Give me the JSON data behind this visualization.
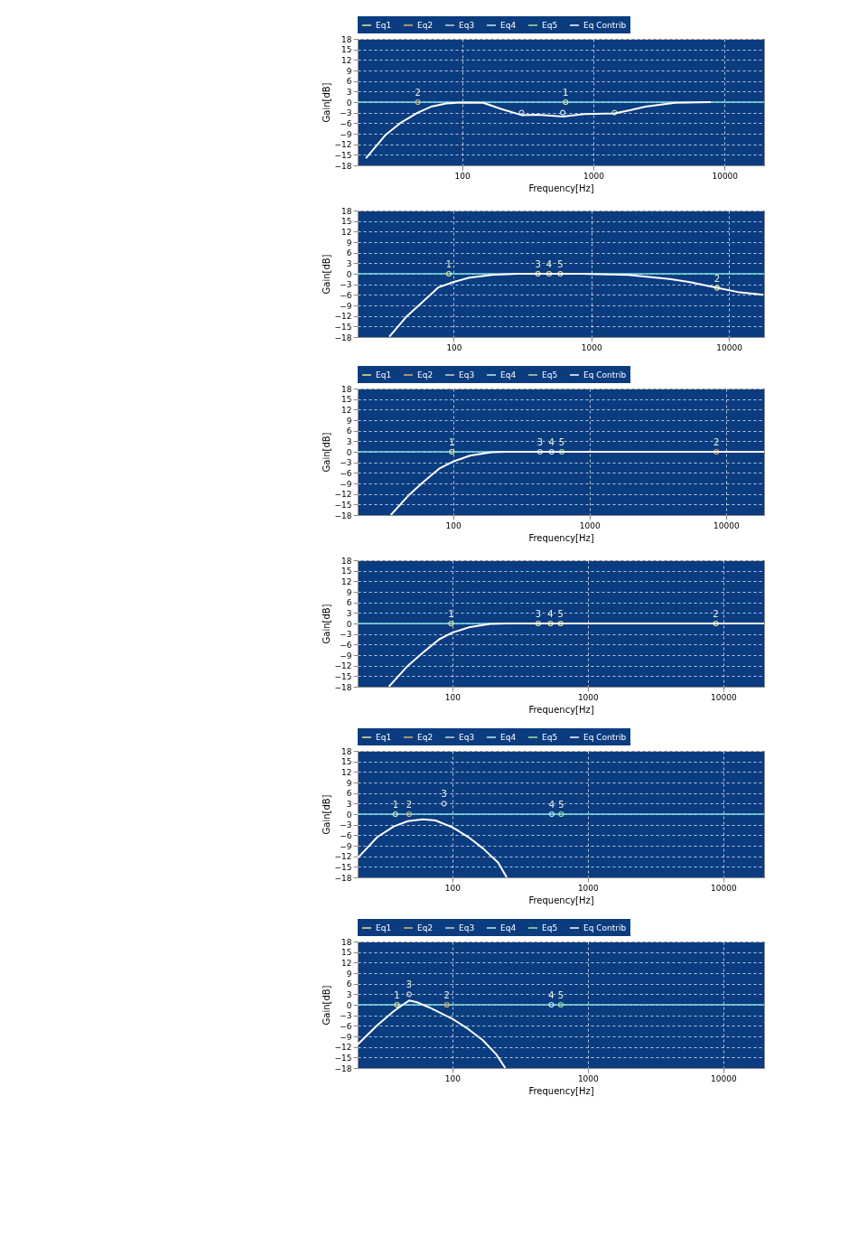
{
  "chart_data": [
    {
      "type": "line",
      "xlabel": "Frequency[Hz]",
      "ylabel": "Gain[dB]",
      "log": "x",
      "grid": true,
      "legend": "top",
      "xlim": [
        16,
        20000
      ],
      "xticks": [
        100,
        1000,
        10000
      ],
      "ylim": [
        -18,
        18
      ],
      "yticks": [
        -18,
        -15,
        -12,
        -9,
        -6,
        -3,
        0,
        3,
        6,
        9,
        12,
        15,
        18
      ],
      "ref_lines": [
        {
          "axis": "y",
          "value": 0,
          "color": "#80e0e0"
        }
      ],
      "series": [
        {
          "name": "Eq1",
          "type": "scatter",
          "marker": "circle",
          "color": "#e8e89a",
          "x": [
            615
          ],
          "values": [
            0
          ]
        },
        {
          "name": "Eq2",
          "type": "scatter",
          "marker": "circle",
          "color": "#e0b070",
          "x": [
            46
          ],
          "values": [
            0
          ]
        },
        {
          "name": "Eq3",
          "type": "scatter",
          "marker": "circle",
          "color": "#d0d0d0",
          "x": [
            284
          ],
          "values": [
            -3
          ]
        },
        {
          "name": "Eq4",
          "type": "scatter",
          "marker": "circle",
          "color": "#c8e8f0",
          "x": [
            585
          ],
          "values": [
            -3
          ]
        },
        {
          "name": "Eq5",
          "type": "scatter",
          "marker": "circle",
          "color": "#a8e0a0",
          "x": [
            1450
          ],
          "values": [
            -3
          ]
        },
        {
          "name": "Eq Contrib",
          "color": "#ffffff",
          "x": [
            18.5,
            26,
            34,
            46,
            58,
            76,
            100,
            145,
            200,
            284,
            381,
            585,
            851,
            1450,
            1900,
            2500,
            4200,
            7850
          ],
          "values": [
            -16,
            -9.4,
            -5.9,
            -3,
            -1.3,
            -0.4,
            -0.1,
            -0.2,
            -2,
            -3.7,
            -3.6,
            -4.1,
            -3.4,
            -3.2,
            -2.3,
            -1.3,
            -0.2,
            0
          ]
        }
      ],
      "annotations": [
        {
          "text": "2",
          "x": 46,
          "y": 0
        },
        {
          "text": "1",
          "x": 615,
          "y": 0
        }
      ]
    },
    {
      "type": "line",
      "ylabel": "Gain[dB]",
      "log": "x",
      "grid": true,
      "xlim": [
        20,
        18000
      ],
      "xticks": [
        100,
        1000,
        10000
      ],
      "ylim": [
        -18,
        18
      ],
      "yticks": [
        -18,
        -15,
        -12,
        -9,
        -6,
        -3,
        0,
        3,
        6,
        9,
        12,
        15,
        18
      ],
      "ref_lines": [
        {
          "axis": "y",
          "value": 0,
          "color": "#80e0e0"
        }
      ],
      "series": [
        {
          "type": "scatter",
          "marker": "circle",
          "color": "#e8e89a",
          "x": [
            92,
            409,
            493,
            594,
            8200
          ],
          "values": [
            0,
            0,
            0,
            0,
            -4
          ]
        },
        {
          "color": "#ffffff",
          "x": [
            34,
            45,
            59,
            77,
            100,
            130,
            189,
            290,
            840,
            1860,
            3700,
            5400,
            8200,
            12000,
            17800
          ],
          "values": [
            -17.9,
            -12.3,
            -8.1,
            -3.9,
            -2.3,
            -1.1,
            -0.3,
            0,
            0,
            -0.3,
            -1.5,
            -2.5,
            -4,
            -5.3,
            -6
          ]
        }
      ],
      "annotations": [
        {
          "text": "1",
          "x": 92,
          "y": 0
        },
        {
          "text": "3",
          "x": 409,
          "y": 0
        },
        {
          "text": "4",
          "x": 493,
          "y": 0
        },
        {
          "text": "5",
          "x": 594,
          "y": 0
        },
        {
          "text": "2",
          "x": 8200,
          "y": -4
        }
      ]
    },
    {
      "type": "line",
      "xlabel": "Frequency[Hz]",
      "ylabel": "Gain[dB]",
      "log": "x",
      "grid": true,
      "legend": "top",
      "xlim": [
        20,
        19000
      ],
      "xticks": [
        100,
        1000,
        10000
      ],
      "ylim": [
        -18,
        18
      ],
      "yticks": [
        -18,
        -15,
        -12,
        -9,
        -6,
        -3,
        0,
        3,
        6,
        9,
        12,
        15,
        18
      ],
      "ref_lines": [
        {
          "axis": "y",
          "value": 0,
          "color": "#80e0e0"
        }
      ],
      "series": [
        {
          "name": "Eq1",
          "type": "scatter",
          "marker": "circle",
          "color": "#e8e89a",
          "x": [
            98
          ],
          "values": [
            0
          ]
        },
        {
          "name": "Eq2",
          "type": "scatter",
          "marker": "circle",
          "color": "#e0b070",
          "x": [
            8500
          ],
          "values": [
            0
          ]
        },
        {
          "name": "Eq3",
          "type": "scatter",
          "marker": "circle",
          "color": "#d0d0d0",
          "x": [
            433
          ],
          "values": [
            0
          ]
        },
        {
          "name": "Eq4",
          "type": "scatter",
          "marker": "circle",
          "color": "#c8e8f0",
          "x": [
            527
          ],
          "values": [
            0
          ]
        },
        {
          "name": "Eq5",
          "type": "scatter",
          "marker": "circle",
          "color": "#a8e0a0",
          "x": [
            626
          ],
          "values": [
            0
          ]
        },
        {
          "name": "Eq Contrib",
          "color": "#ffffff",
          "x": [
            35,
            47,
            61,
            79,
            100,
            133,
            191,
            248,
            19000
          ],
          "values": [
            -18,
            -12.5,
            -8.5,
            -4.8,
            -2.8,
            -1.1,
            -0.1,
            0,
            0
          ]
        }
      ],
      "annotations": [
        {
          "text": "1",
          "x": 98,
          "y": 0
        },
        {
          "text": "3",
          "x": 433,
          "y": 0
        },
        {
          "text": "4",
          "x": 527,
          "y": 0
        },
        {
          "text": "5",
          "x": 626,
          "y": 0
        },
        {
          "text": "2",
          "x": 8500,
          "y": 0
        }
      ]
    },
    {
      "type": "line",
      "xlabel": "Frequency[Hz]",
      "ylabel": "Gain[dB]",
      "log": "x",
      "grid": true,
      "xlim": [
        20,
        20000
      ],
      "xticks": [
        100,
        1000,
        10000
      ],
      "ylim": [
        -18,
        18
      ],
      "yticks": [
        -18,
        -15,
        -12,
        -9,
        -6,
        -3,
        0,
        3,
        6,
        9,
        12,
        15,
        18
      ],
      "ref_lines": [
        {
          "axis": "y",
          "value": 0,
          "color": "#80e0e0"
        }
      ],
      "series": [
        {
          "type": "scatter",
          "marker": "circle",
          "color": "#e8e89a",
          "x": [
            98,
            430,
            530,
            630,
            8800
          ],
          "values": [
            0,
            0,
            0,
            0,
            0
          ]
        },
        {
          "color": "#ffffff",
          "x": [
            34,
            47,
            62,
            80,
            100,
            135,
            190,
            250,
            20000
          ],
          "values": [
            -18,
            -12,
            -8,
            -4.5,
            -2.6,
            -1,
            -0.1,
            0,
            0
          ]
        }
      ],
      "annotations": [
        {
          "text": "1",
          "x": 98,
          "y": 0
        },
        {
          "text": "3",
          "x": 430,
          "y": 0
        },
        {
          "text": "4",
          "x": 530,
          "y": 0
        },
        {
          "text": "5",
          "x": 630,
          "y": 0
        },
        {
          "text": "2",
          "x": 8800,
          "y": 0
        }
      ]
    },
    {
      "type": "line",
      "xlabel": "Frequency[Hz]",
      "ylabel": "Gain[dB]",
      "log": "x",
      "grid": true,
      "legend": "top",
      "xlim": [
        20,
        20000
      ],
      "xticks": [
        100,
        1000,
        10000
      ],
      "ylim": [
        -18,
        18
      ],
      "yticks": [
        -18,
        -15,
        -12,
        -9,
        -6,
        -3,
        0,
        3,
        6,
        9,
        12,
        15,
        18
      ],
      "ref_lines": [
        {
          "axis": "y",
          "value": 0,
          "color": "#80e0e0"
        }
      ],
      "series": [
        {
          "name": "Eq1",
          "type": "scatter",
          "marker": "circle",
          "color": "#e8e89a",
          "x": [
            38
          ],
          "values": [
            0
          ]
        },
        {
          "name": "Eq2",
          "type": "scatter",
          "marker": "circle",
          "color": "#e0b070",
          "x": [
            48
          ],
          "values": [
            0
          ]
        },
        {
          "name": "Eq3",
          "type": "scatter",
          "marker": "circle",
          "color": "#d0d0d0",
          "x": [
            87
          ],
          "values": [
            3
          ]
        },
        {
          "name": "Eq4",
          "type": "scatter",
          "marker": "circle",
          "color": "#c8e8f0",
          "x": [
            542
          ],
          "values": [
            0
          ]
        },
        {
          "name": "Eq5",
          "type": "scatter",
          "marker": "circle",
          "color": "#a8e0a0",
          "x": [
            636
          ],
          "values": [
            0
          ]
        },
        {
          "name": "Eq Contrib",
          "color": "#ffffff",
          "x": [
            20,
            28,
            37,
            47,
            61,
            75,
            101,
            131,
            169,
            218,
            252
          ],
          "values": [
            -12.5,
            -6.5,
            -3.5,
            -2,
            -1.5,
            -1.8,
            -3.8,
            -6.5,
            -9.8,
            -13.8,
            -18
          ]
        }
      ],
      "annotations": [
        {
          "text": "1",
          "x": 38,
          "y": 0
        },
        {
          "text": "2",
          "x": 48,
          "y": 0
        },
        {
          "text": "3",
          "x": 87,
          "y": 3
        },
        {
          "text": "4",
          "x": 542,
          "y": 0
        },
        {
          "text": "5",
          "x": 636,
          "y": 0
        }
      ]
    },
    {
      "type": "line",
      "xlabel": "Frequency[Hz]",
      "ylabel": "Gain[dB]",
      "log": "x",
      "grid": true,
      "legend": "top",
      "xlim": [
        20,
        20000
      ],
      "xticks": [
        100,
        1000,
        10000
      ],
      "ylim": [
        -18,
        18
      ],
      "yticks": [
        -18,
        -15,
        -12,
        -9,
        -6,
        -3,
        0,
        3,
        6,
        9,
        12,
        15,
        18
      ],
      "ref_lines": [
        {
          "axis": "y",
          "value": 0,
          "color": "#80e0e0"
        }
      ],
      "series": [
        {
          "name": "Eq1",
          "type": "scatter",
          "marker": "circle",
          "color": "#e8e89a",
          "x": [
            39
          ],
          "values": [
            0
          ]
        },
        {
          "name": "Eq2",
          "type": "scatter",
          "marker": "circle",
          "color": "#e0b070",
          "x": [
            91
          ],
          "values": [
            0
          ]
        },
        {
          "name": "Eq3",
          "type": "scatter",
          "marker": "circle",
          "color": "#d0d0d0",
          "x": [
            48
          ],
          "values": [
            3
          ]
        },
        {
          "name": "Eq4",
          "type": "scatter",
          "marker": "circle",
          "color": "#c8e8f0",
          "x": [
            538
          ],
          "values": [
            0
          ]
        },
        {
          "name": "Eq5",
          "type": "scatter",
          "marker": "circle",
          "color": "#a8e0a0",
          "x": [
            632
          ],
          "values": [
            0
          ]
        },
        {
          "name": "Eq Contrib",
          "color": "#ffffff",
          "x": [
            20,
            28,
            37,
            45,
            48,
            55,
            67,
            101,
            130,
            168,
            211,
            246
          ],
          "values": [
            -11.3,
            -5.8,
            -1.8,
            0.5,
            1.2,
            0.7,
            -0.7,
            -4.1,
            -6.8,
            -10.1,
            -14.1,
            -18
          ]
        }
      ],
      "annotations": [
        {
          "text": "1",
          "x": 39,
          "y": 0
        },
        {
          "text": "3",
          "x": 48,
          "y": 3
        },
        {
          "text": "2",
          "x": 91,
          "y": 0
        },
        {
          "text": "4",
          "x": 538,
          "y": 0
        },
        {
          "text": "5",
          "x": 632,
          "y": 0
        }
      ]
    }
  ]
}
